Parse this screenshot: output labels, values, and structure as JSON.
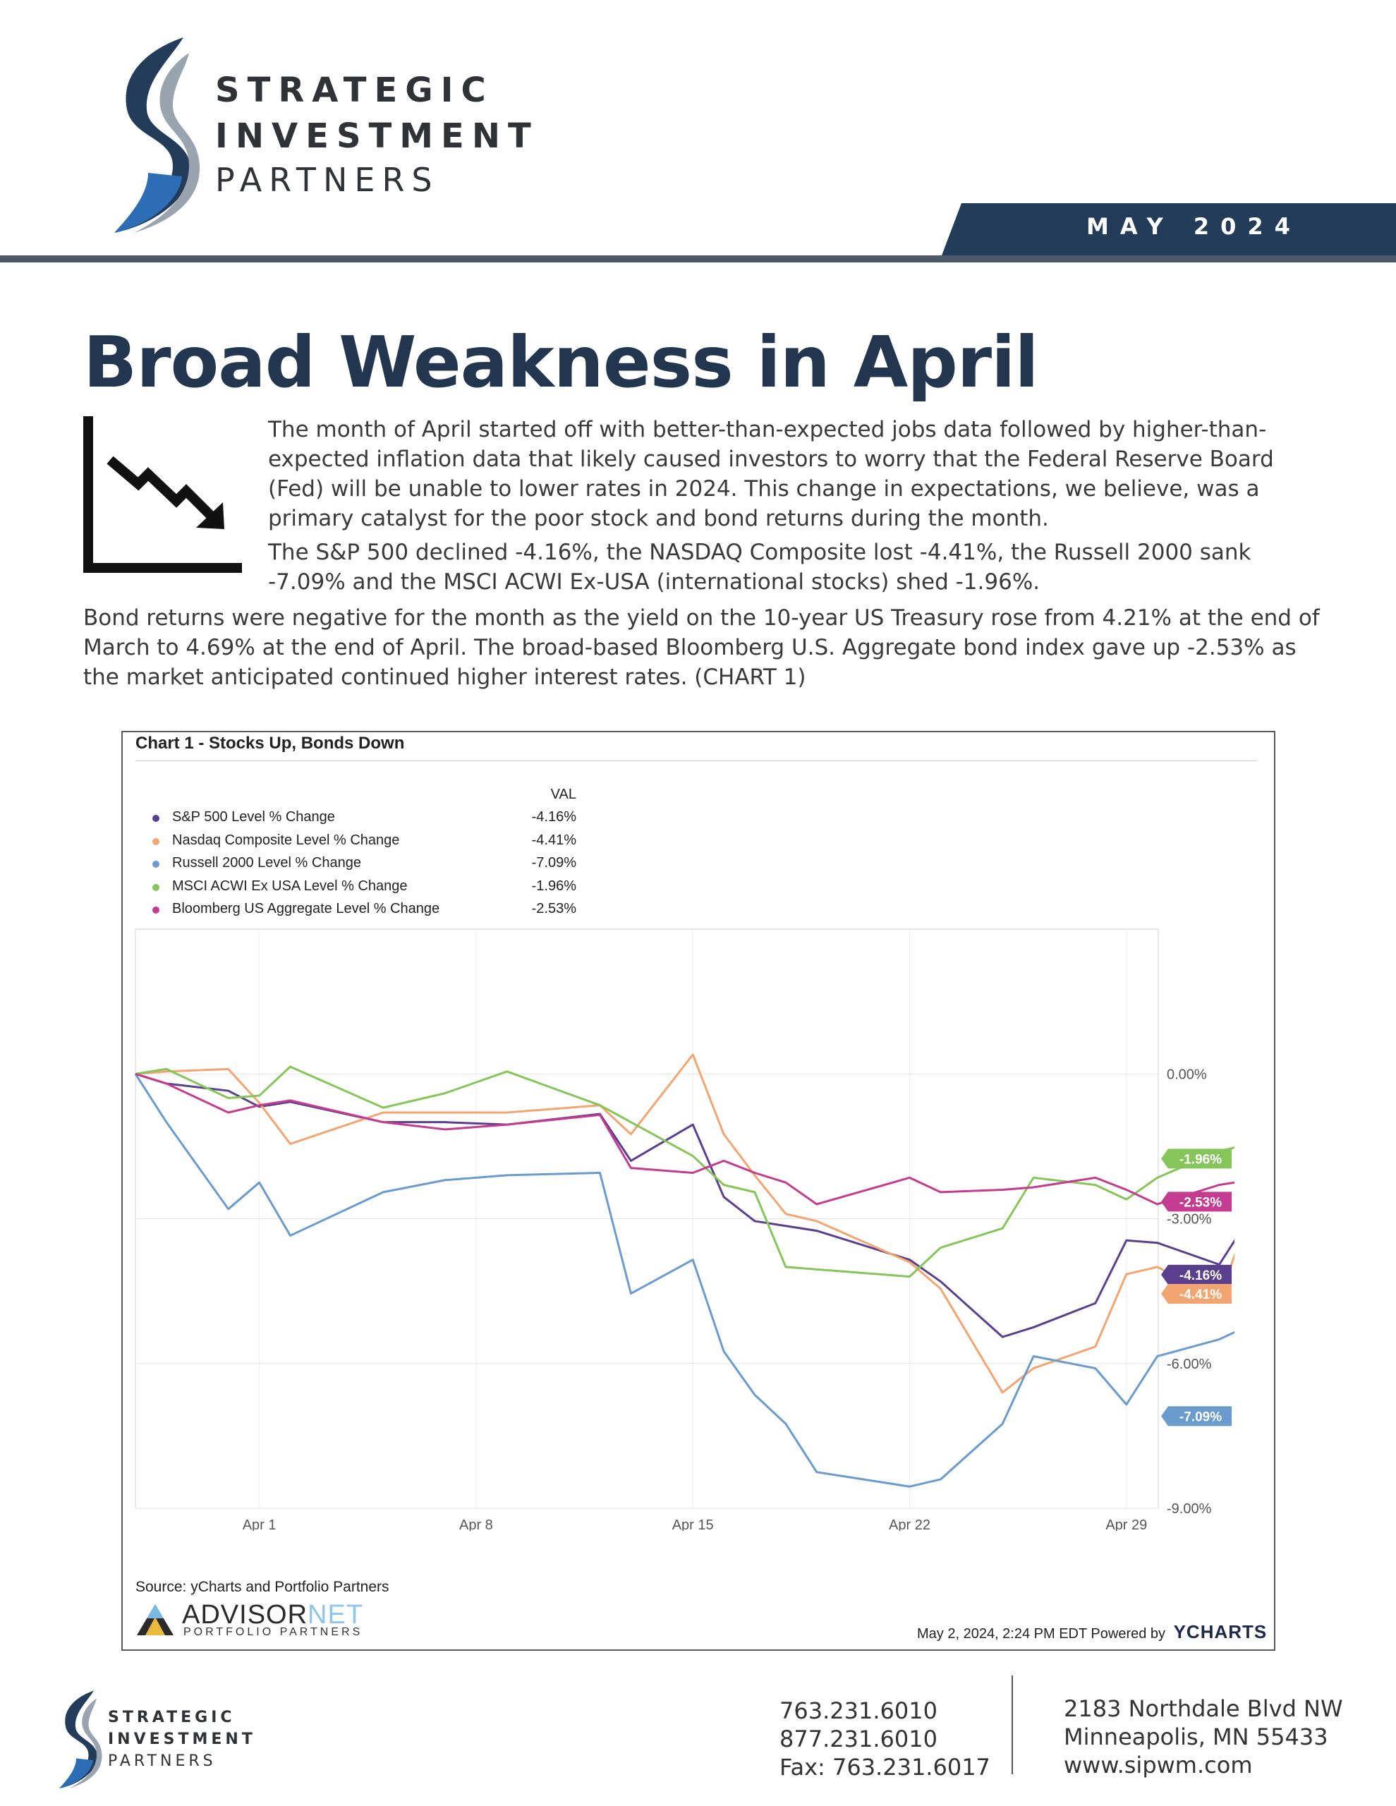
{
  "header": {
    "brand_line1": "STRATEGIC",
    "brand_line2": "INVESTMENT",
    "brand_line3": "PARTNERS",
    "month": "MAY 2024"
  },
  "article": {
    "title": "Broad Weakness in April",
    "para1": "The month of April started off with better-than-expected jobs data followed by higher-than-expected inflation data that likely caused investors to worry that the Federal Reserve Board (Fed) will be unable to lower rates in 2024. This change in expectations, we believe, was a primary catalyst for the poor stock and bond returns during the month.",
    "para2": "The S&P 500 declined -4.16%, the NASDAQ Composite lost -4.41%, the Russell 2000 sank -7.09% and the MSCI ACWI Ex-USA (international stocks) shed -1.96%.",
    "para3": "Bond returns were negative for the month as the yield on the 10-year US Treasury rose from 4.21% at the end of March to 4.69% at the end of April. The broad-based Bloomberg U.S. Aggregate bond index gave up -2.53% as the market anticipated continued higher interest rates. (CHART 1)"
  },
  "chart_panel": {
    "source": "Source: yCharts and Portfolio Partners",
    "advisor_net": "ADVISOR",
    "advisor_net_2": "NET",
    "portfolio_partners": "PORTFOLIO PARTNERS",
    "stamp": "May 2, 2024, 2:24 PM EDT Powered by",
    "ycharts": "YCHARTS",
    "legend_header": "VAL"
  },
  "chart_data": {
    "type": "line",
    "title": "Chart 1 - Stocks Up, Bonds Down",
    "x_ticks": [
      "Apr 1",
      "Apr 8",
      "Apr 15",
      "Apr 22",
      "Apr 29"
    ],
    "x_tick_days": [
      1,
      8,
      15,
      22,
      29
    ],
    "y_ticks": [
      "0.00%",
      "-3.00%",
      "-6.00%",
      "-9.00%"
    ],
    "y_tick_values": [
      0,
      -3,
      -6,
      -9
    ],
    "ylim": [
      -9,
      3
    ],
    "grid": true,
    "legend_position": "top-left",
    "series": [
      {
        "name": "S&P 500 Level % Change",
        "color": "#5b3f8f",
        "final_label": "-4.16%",
        "final": -4.16,
        "x": [
          28,
          29,
          31,
          32,
          33,
          36,
          38,
          40,
          43,
          44,
          46,
          47,
          48,
          49,
          50,
          53,
          54,
          56,
          57,
          59,
          60,
          61,
          63,
          64,
          65,
          66,
          67
        ],
        "y": [
          0,
          -0.2,
          -0.35,
          -0.68,
          -0.58,
          -1.0,
          -1.0,
          -1.05,
          -0.83,
          -1.8,
          -1.05,
          -2.55,
          -3.05,
          -3.15,
          -3.25,
          -3.85,
          -4.3,
          -5.45,
          -5.25,
          -4.75,
          -3.45,
          -3.5,
          -3.95,
          -2.95,
          -2.85,
          -2.75,
          -4.16
        ]
      },
      {
        "name": "Nasdaq Composite Level % Change",
        "color": "#f2a570",
        "final_label": "-4.41%",
        "final": -4.41,
        "x": [
          28,
          29,
          31,
          32,
          33,
          36,
          38,
          40,
          43,
          44,
          46,
          47,
          48,
          49,
          50,
          53,
          54,
          56,
          57,
          59,
          60,
          61,
          63,
          64,
          65,
          66,
          67
        ],
        "y": [
          0,
          0.05,
          0.1,
          -0.6,
          -1.45,
          -0.8,
          -0.8,
          -0.8,
          -0.65,
          -1.25,
          0.4,
          -1.25,
          -2.1,
          -2.9,
          -3.05,
          -3.9,
          -4.45,
          -6.6,
          -6.1,
          -5.65,
          -4.15,
          -4.0,
          -4.65,
          -2.85,
          -2.75,
          -2.5,
          -4.41
        ]
      },
      {
        "name": "Russell 2000 Level % Change",
        "color": "#6a9bcf",
        "final_label": "-7.09%",
        "final": -7.09,
        "x": [
          28,
          29,
          31,
          32,
          33,
          36,
          38,
          40,
          43,
          44,
          46,
          47,
          48,
          49,
          50,
          53,
          54,
          56,
          57,
          59,
          60,
          61,
          63,
          64,
          65,
          66,
          67
        ],
        "y": [
          0,
          -1.0,
          -2.8,
          -2.25,
          -3.35,
          -2.45,
          -2.2,
          -2.1,
          -2.05,
          -4.55,
          -3.85,
          -5.75,
          -6.65,
          -7.25,
          -8.25,
          -8.55,
          -8.4,
          -7.25,
          -5.85,
          -6.1,
          -6.85,
          -5.85,
          -5.5,
          -5.2,
          -5.35,
          -5.5,
          -7.09
        ]
      },
      {
        "name": "MSCI ACWI Ex USA Level % Change",
        "color": "#86c55a",
        "final_label": "-1.96%",
        "final": -1.96,
        "x": [
          28,
          29,
          31,
          32,
          33,
          36,
          38,
          40,
          43,
          44,
          46,
          47,
          48,
          49,
          50,
          53,
          54,
          56,
          57,
          59,
          60,
          61,
          63,
          64,
          65,
          66,
          67
        ],
        "y": [
          0,
          0.1,
          -0.5,
          -0.45,
          0.15,
          -0.7,
          -0.4,
          0.05,
          -0.65,
          -1.0,
          -1.7,
          -2.3,
          -2.45,
          -4.0,
          -4.05,
          -4.2,
          -3.6,
          -3.2,
          -2.15,
          -2.3,
          -2.6,
          -2.15,
          -1.6,
          -1.45,
          -1.55,
          -1.55,
          -1.96
        ]
      },
      {
        "name": "Bloomberg US Aggregate Level % Change",
        "color": "#c43c8f",
        "final_label": "-2.53%",
        "final": -2.53,
        "x": [
          28,
          29,
          31,
          32,
          33,
          36,
          38,
          40,
          43,
          44,
          46,
          47,
          48,
          49,
          50,
          53,
          54,
          56,
          57,
          59,
          60,
          61,
          63,
          64,
          65,
          66,
          67
        ],
        "y": [
          0,
          -0.2,
          -0.8,
          -0.65,
          -0.55,
          -1.0,
          -1.15,
          -1.05,
          -0.85,
          -1.95,
          -2.05,
          -1.8,
          -2.05,
          -2.25,
          -2.7,
          -2.15,
          -2.45,
          -2.4,
          -2.35,
          -2.15,
          -2.4,
          -2.7,
          -2.3,
          -2.2,
          -2.15,
          -2.2,
          -2.53
        ]
      }
    ]
  },
  "footer": {
    "phone1": "763.231.6010",
    "phone2": "877.231.6010",
    "fax": "Fax: 763.231.6017",
    "address1": "2183 Northdale Blvd NW",
    "address2": "Minneapolis, MN 55433",
    "website": "www.sipwm.com"
  }
}
